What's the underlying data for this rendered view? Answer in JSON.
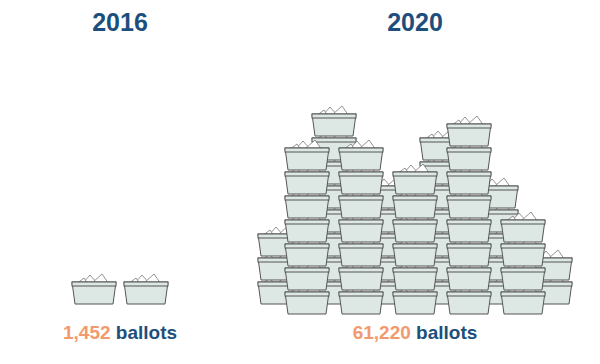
{
  "chart_data": {
    "type": "pictograph",
    "categories": [
      "2016",
      "2020"
    ],
    "values": [
      1452,
      61220
    ],
    "value_labels": [
      "1,452 ballots",
      "61,220 ballots"
    ],
    "color": "#dde8e4",
    "tick_labels": false,
    "data_labels": true
  }
}
